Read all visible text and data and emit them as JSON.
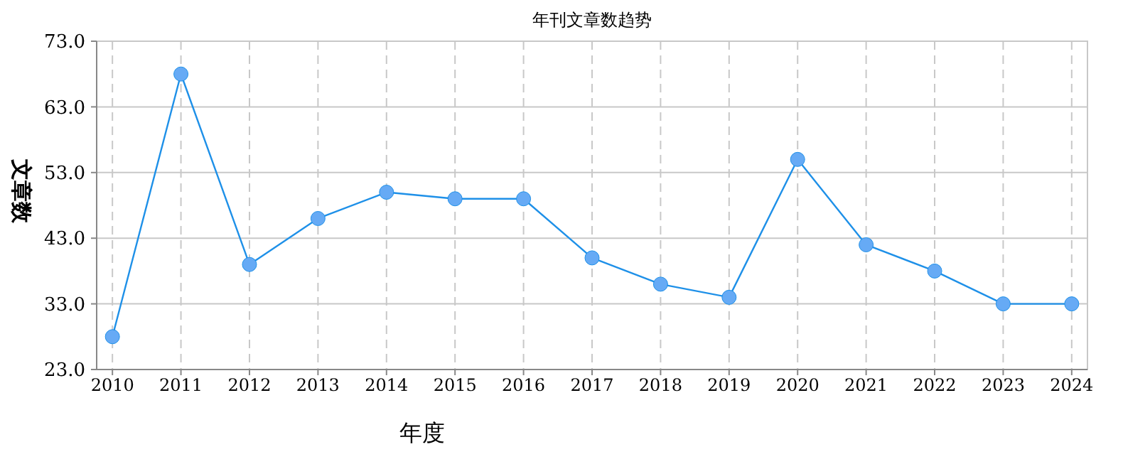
{
  "chart_data": {
    "type": "line",
    "title": "年刊文章数趋势",
    "xlabel": "年度",
    "ylabel": "文章数",
    "categories": [
      "2010",
      "2011",
      "2012",
      "2013",
      "2014",
      "2015",
      "2016",
      "2017",
      "2018",
      "2019",
      "2020",
      "2021",
      "2022",
      "2023",
      "2024"
    ],
    "series": [
      {
        "color": "#1e90e8",
        "values": [
          28,
          68,
          39,
          46,
          50,
          49,
          49,
          40,
          36,
          34,
          55,
          42,
          38,
          33,
          33
        ]
      }
    ],
    "ylim": [
      23,
      73
    ],
    "yticks": [
      {
        "value": 23,
        "label": "23.0"
      },
      {
        "value": 33,
        "label": "33.0"
      },
      {
        "value": 43,
        "label": "43.0"
      },
      {
        "value": 53,
        "label": "53.0"
      },
      {
        "value": 63,
        "label": "63.0"
      },
      {
        "value": 73,
        "label": "73.0"
      }
    ],
    "grid": true,
    "marker": "circle"
  }
}
